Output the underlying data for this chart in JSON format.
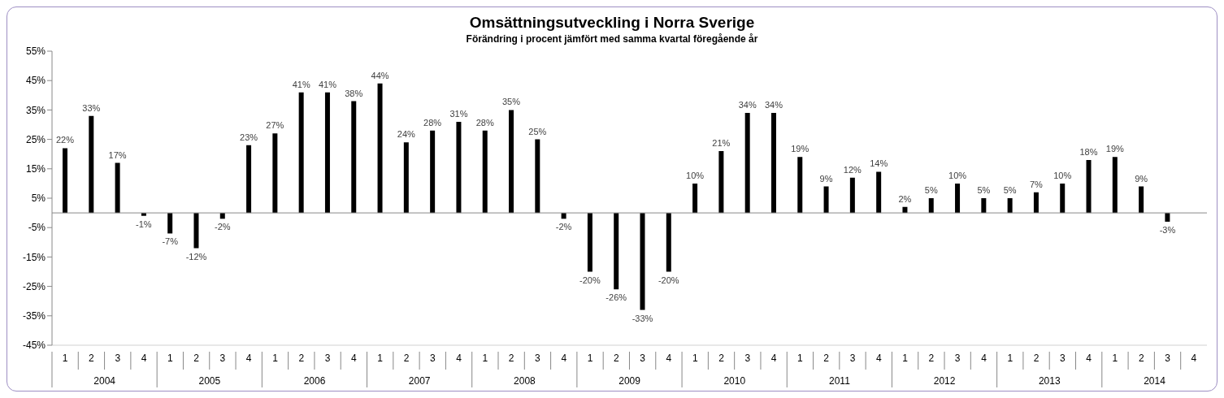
{
  "chart_data": {
    "type": "bar",
    "title": "Omsättningsutveckling i Norra Sverige",
    "subtitle": "Förändring i procent jämfört med samma kvartal föregående år",
    "categories": [
      "1",
      "2",
      "3",
      "4",
      "1",
      "2",
      "3",
      "4",
      "1",
      "2",
      "3",
      "4",
      "1",
      "2",
      "3",
      "4",
      "1",
      "2",
      "3",
      "4",
      "1",
      "2",
      "3",
      "4",
      "1",
      "2",
      "3",
      "4",
      "1",
      "2",
      "3",
      "4",
      "1",
      "2",
      "3",
      "4",
      "1",
      "2",
      "3",
      "4",
      "1",
      "2",
      "3",
      "4"
    ],
    "annotations": [
      "2004",
      "2005",
      "2006",
      "2007",
      "2008",
      "2009",
      "2010",
      "2011",
      "2012",
      "2013",
      "2014"
    ],
    "values": [
      22,
      33,
      17,
      -1,
      -7,
      -12,
      -2,
      23,
      27,
      41,
      41,
      38,
      44,
      24,
      28,
      31,
      28,
      35,
      25,
      -2,
      -20,
      -26,
      -33,
      -20,
      10,
      21,
      34,
      34,
      19,
      9,
      12,
      14,
      2,
      5,
      10,
      5,
      5,
      7,
      10,
      18,
      19,
      9,
      -3,
      null
    ],
    "value_labels": [
      "22%",
      "33%",
      "17%",
      "-1%",
      "-7%",
      "-12%",
      "-2%",
      "23%",
      "27%",
      "41%",
      "41%",
      "38%",
      "44%",
      "24%",
      "28%",
      "31%",
      "28%",
      "35%",
      "25%",
      "-2%",
      "-20%",
      "-26%",
      "-33%",
      "-20%",
      "10%",
      "21%",
      "34%",
      "34%",
      "19%",
      "9%",
      "12%",
      "14%",
      "2%",
      "5%",
      "10%",
      "5%",
      "5%",
      "7%",
      "10%",
      "18%",
      "19%",
      "9%",
      "-3%",
      null
    ],
    "color": "#000000",
    "ylim": [
      -45,
      55
    ],
    "yticks": [
      {
        "value": -45,
        "label": "-45%"
      },
      {
        "value": -35,
        "label": "-35%"
      },
      {
        "value": -25,
        "label": "-25%"
      },
      {
        "value": -15,
        "label": "-15%"
      },
      {
        "value": -5,
        "label": "-5%"
      },
      {
        "value": 5,
        "label": "5%"
      },
      {
        "value": 15,
        "label": "15%"
      },
      {
        "value": 25,
        "label": "25%"
      },
      {
        "value": 35,
        "label": "35%"
      },
      {
        "value": 45,
        "label": "45%"
      },
      {
        "value": 55,
        "label": "55%"
      }
    ],
    "grid": false,
    "legend": false
  }
}
